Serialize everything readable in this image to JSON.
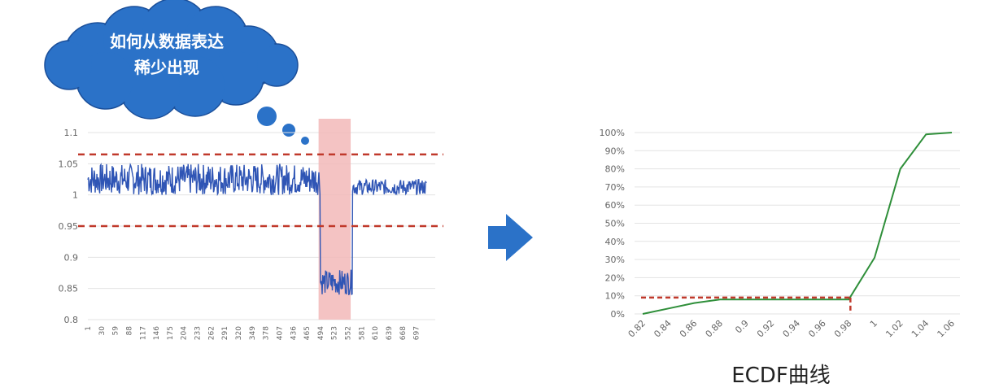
{
  "cloud": {
    "line1": "如何从数据表达",
    "line2": "稀少出现"
  },
  "colors": {
    "series_blue": "#2f55b5",
    "threshold_red": "#c0392b",
    "highlight_pink": "#f2b8b8",
    "cloud_blue": "#2b72c8",
    "ecdf_green": "#2f8f3a",
    "arrow_blue": "#2b72c8"
  },
  "chart_data": [
    {
      "type": "line",
      "title": "",
      "ylim": [
        0.8,
        1.1
      ],
      "yticks": [
        "1.1",
        "1.05",
        "1",
        "0.95",
        "0.9",
        "0.85",
        "0.8"
      ],
      "xticks": [
        "1",
        "30",
        "59",
        "88",
        "117",
        "146",
        "175",
        "204",
        "233",
        "262",
        "291",
        "320",
        "349",
        "378",
        "407",
        "436",
        "465",
        "494",
        "523",
        "552",
        "581",
        "610",
        "639",
        "668",
        "697"
      ],
      "x_range": [
        1,
        720
      ],
      "series": [
        {
          "segment": "before_dip",
          "x_range": [
            1,
            494
          ],
          "mean": 1.02,
          "noise_range": [
            1.0,
            1.05
          ]
        },
        {
          "segment": "dip",
          "x_range": [
            494,
            562
          ],
          "mean": 0.865,
          "noise_range": [
            0.84,
            0.88
          ]
        },
        {
          "segment": "after_dip",
          "x_range": [
            562,
            720
          ],
          "mean": 1.01,
          "noise_range": [
            1.0,
            1.025
          ]
        }
      ],
      "thresholds": [
        1.065,
        0.95
      ],
      "highlight_x_range": [
        490,
        558
      ],
      "grid": true
    },
    {
      "type": "line",
      "caption": "ECDF曲线",
      "x_categories": [
        "0.82",
        "0.84",
        "0.86",
        "0.88",
        "0.9",
        "0.92",
        "0.94",
        "0.96",
        "0.98",
        "1",
        "1.02",
        "1.04",
        "1.06"
      ],
      "yticks": [
        "100%",
        "90%",
        "80%",
        "70%",
        "60%",
        "50%",
        "40%",
        "30%",
        "20%",
        "10%",
        "0%"
      ],
      "ylim": [
        0,
        1
      ],
      "values": [
        0,
        0.03,
        0.06,
        0.08,
        0.08,
        0.08,
        0.08,
        0.08,
        0.08,
        0.31,
        0.8,
        0.99,
        1.0
      ],
      "marker_level": 0.09,
      "marker_x": "0.98",
      "grid": true
    }
  ]
}
